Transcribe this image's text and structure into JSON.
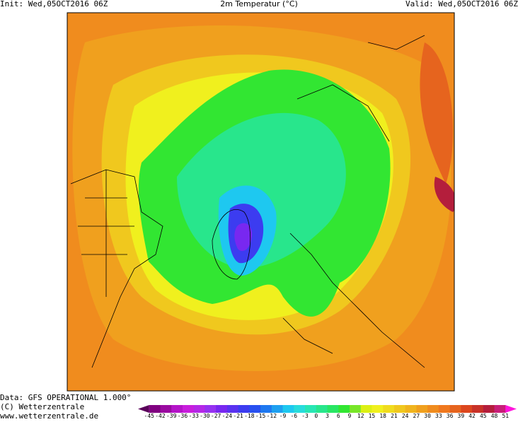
{
  "header": {
    "init": "Init: Wed,05OCT2016 06Z",
    "title": "2m Temperatur (°C)",
    "valid": "Valid: Wed,05OCT2016 06Z"
  },
  "footer": {
    "source": "Data: GFS OPERATIONAL 1.000°",
    "copyright": "(C) Wetterzentrale",
    "url": "www.wetterzentrale.de"
  },
  "legend": {
    "ticks": [
      -45,
      -42,
      -39,
      -36,
      -33,
      -30,
      -27,
      -24,
      -21,
      -18,
      -15,
      -12,
      -9,
      -6,
      -3,
      0,
      3,
      6,
      9,
      12,
      15,
      18,
      21,
      24,
      27,
      30,
      33,
      36,
      39,
      42,
      45,
      48,
      51
    ],
    "colors": [
      "#5a005a",
      "#800080",
      "#9a0aa0",
      "#b414c8",
      "#c81edc",
      "#b428e6",
      "#9632f0",
      "#7828f0",
      "#5a32f0",
      "#3c3cf0",
      "#2850f0",
      "#1e78f0",
      "#1ea0f0",
      "#1ec8f0",
      "#28dcdc",
      "#28e6b4",
      "#28e68c",
      "#28e664",
      "#32e632",
      "#78e628",
      "#dcf014",
      "#f0f01e",
      "#f0dc1e",
      "#f0c81e",
      "#f0b41e",
      "#f0a01e",
      "#f08c1e",
      "#f0781e",
      "#e6641e",
      "#dc461e",
      "#c83228",
      "#b41e3c",
      "#c81e78",
      "#ff14dc"
    ]
  }
}
